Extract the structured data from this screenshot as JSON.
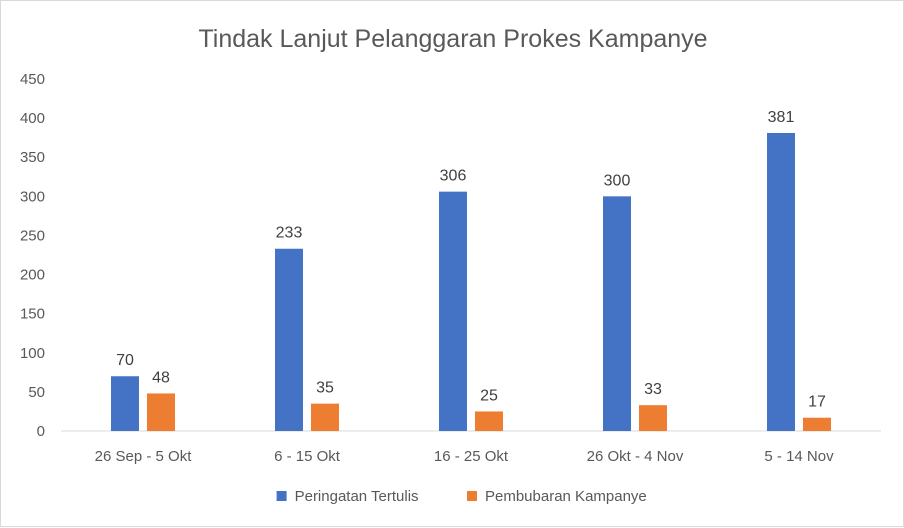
{
  "chart_data": {
    "type": "bar",
    "title": "Tindak Lanjut Pelanggaran Prokes Kampanye",
    "categories": [
      "26 Sep - 5 Okt",
      "6 - 15 Okt",
      "16 - 25 Okt",
      "26 Okt - 4 Nov",
      "5 - 14 Nov"
    ],
    "series": [
      {
        "name": "Peringatan Tertulis",
        "values": [
          70,
          233,
          306,
          300,
          381
        ],
        "color": "#4472c4"
      },
      {
        "name": "Pembubaran Kampanye",
        "values": [
          48,
          35,
          25,
          33,
          17
        ],
        "color": "#ed7d31"
      }
    ],
    "ylim": [
      0,
      450
    ],
    "yticks": [
      0,
      50,
      100,
      150,
      200,
      250,
      300,
      350,
      400,
      450
    ],
    "grid": false,
    "legend_position": "bottom",
    "data_labels": true
  }
}
